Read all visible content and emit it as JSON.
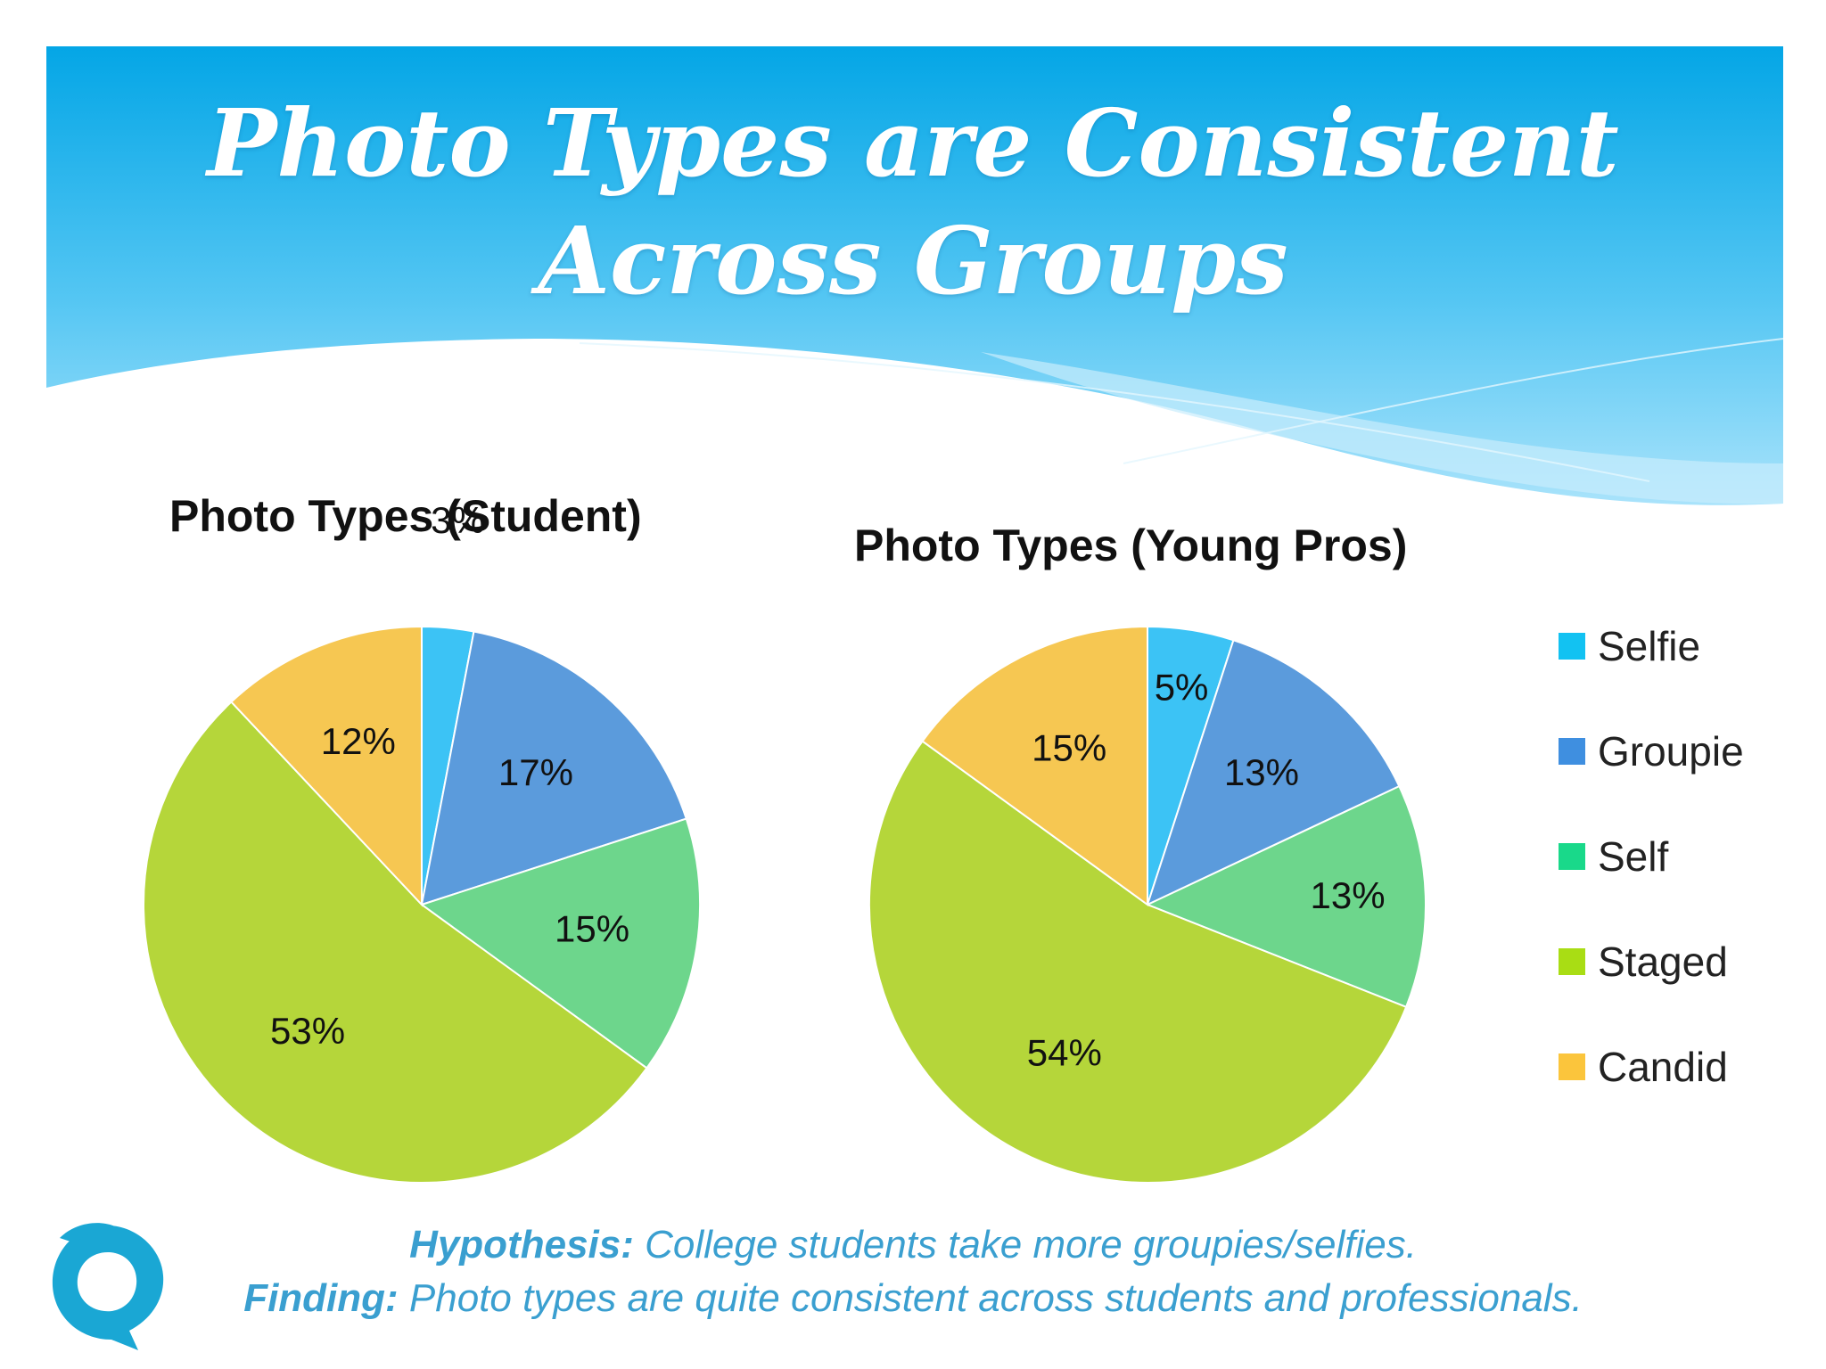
{
  "slide": {
    "title_line1": "Photo Types are Consistent",
    "title_line2": "Across Groups"
  },
  "chart_data": [
    {
      "type": "pie",
      "title": "Photo Types (Student)",
      "categories": [
        "Selfie",
        "Groupie",
        "Self",
        "Staged",
        "Candid"
      ],
      "values": [
        3,
        17,
        15,
        53,
        12
      ],
      "labels": [
        "3%",
        "17%",
        "15%",
        "53%",
        "12%"
      ],
      "colors": [
        "#3cc3f5",
        "#5b9bdc",
        "#6dd68c",
        "#b5d63a",
        "#f6c752"
      ]
    },
    {
      "type": "pie",
      "title": "Photo Types (Young Pros)",
      "categories": [
        "Selfie",
        "Groupie",
        "Self",
        "Staged",
        "Candid"
      ],
      "values": [
        5,
        13,
        13,
        54,
        15
      ],
      "labels": [
        "5%",
        "13%",
        "13%",
        "54%",
        "15%"
      ],
      "colors": [
        "#3cc3f5",
        "#5b9bdc",
        "#6dd68c",
        "#b5d63a",
        "#f6c752"
      ],
      "legend_position": "right"
    }
  ],
  "legend": {
    "items": [
      {
        "label": "Selfie",
        "color": "#12c2f2"
      },
      {
        "label": "Groupie",
        "color": "#3f8fe0"
      },
      {
        "label": "Self",
        "color": "#19d98a"
      },
      {
        "label": "Staged",
        "color": "#a9dd14"
      },
      {
        "label": "Candid",
        "color": "#fbc53c"
      }
    ]
  },
  "footer": {
    "hypothesis_label": "Hypothesis:",
    "hypothesis_text": "College students take more groupies/selfies.",
    "finding_label": "Finding:",
    "finding_text": "Photo types are quite consistent across students and professionals."
  },
  "logo": {
    "icon": "dolphin-logo-icon",
    "color": "#1aa7d4"
  }
}
